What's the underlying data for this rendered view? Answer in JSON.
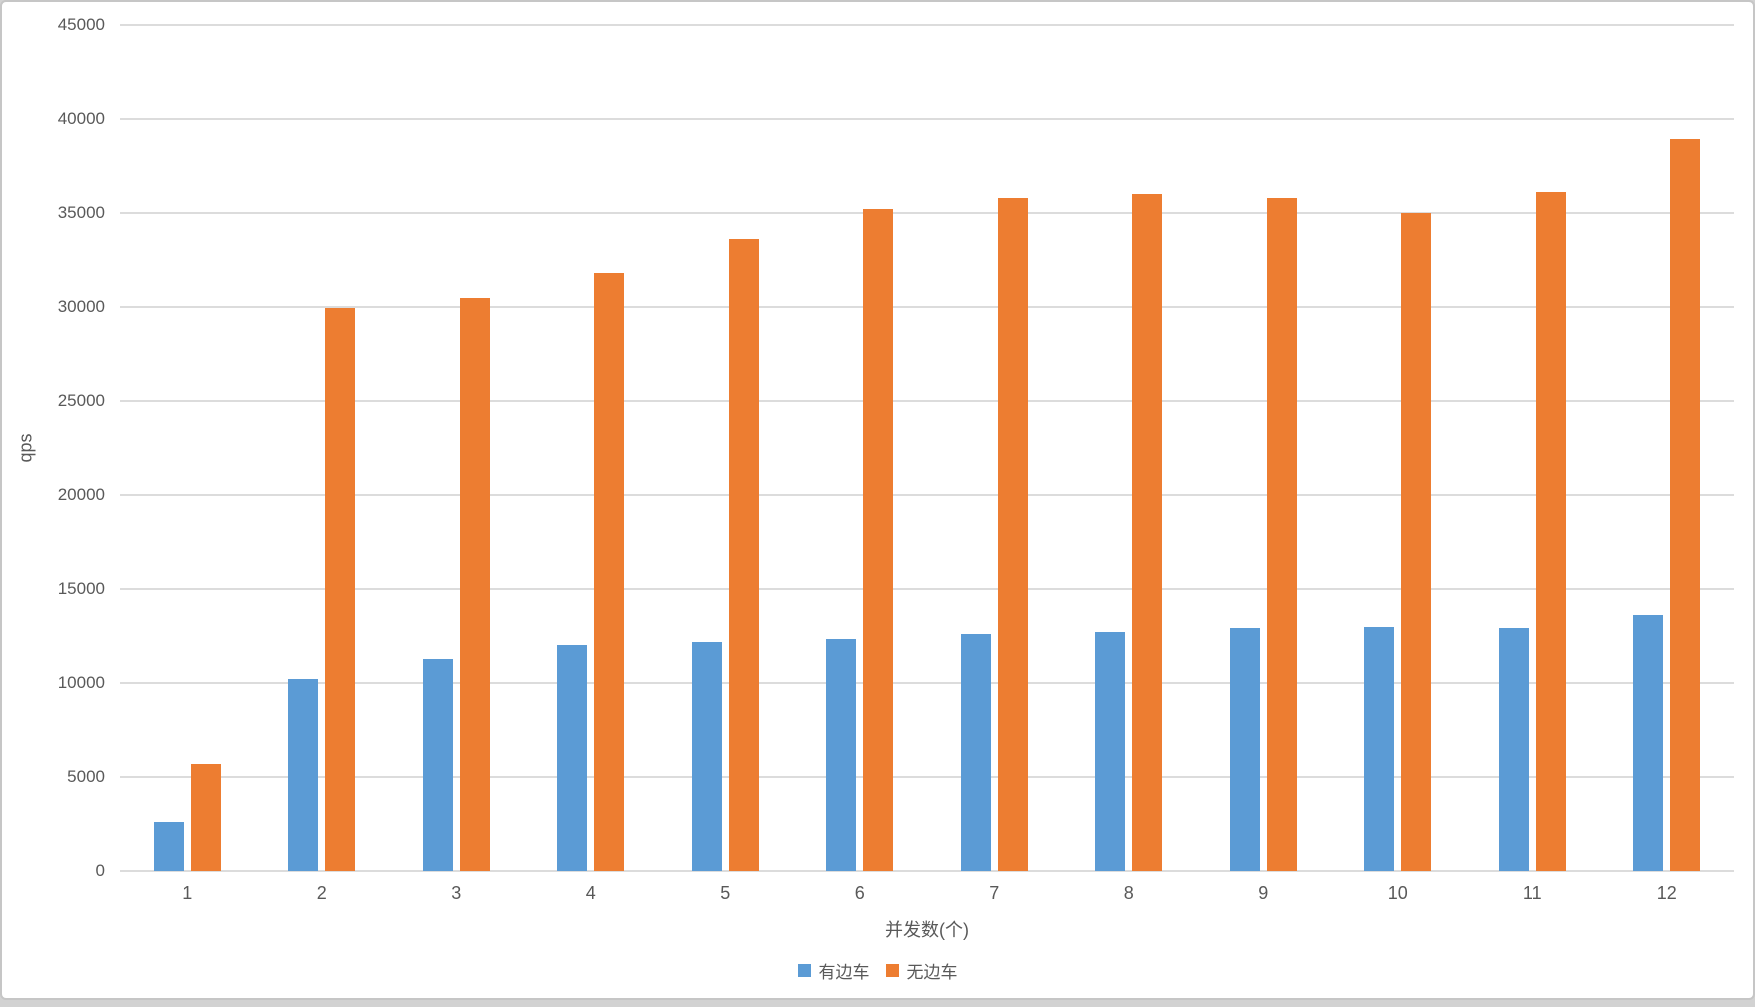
{
  "chart_data": {
    "type": "bar",
    "title": "",
    "xlabel": "并发数(个)",
    "ylabel": "qps",
    "categories": [
      "1",
      "2",
      "3",
      "4",
      "5",
      "6",
      "7",
      "8",
      "9",
      "10",
      "11",
      "12"
    ],
    "series": [
      {
        "name": "有边车",
        "color": "#5b9bd5",
        "values": [
          2600,
          10200,
          11300,
          12000,
          12200,
          12350,
          12600,
          12700,
          12900,
          13000,
          12950,
          13600
        ]
      },
      {
        "name": "无边车",
        "color": "#ed7d31",
        "values": [
          5700,
          29950,
          30500,
          31800,
          33600,
          35200,
          35800,
          36000,
          35800,
          35000,
          36100,
          38950
        ]
      }
    ],
    "ylim": [
      0,
      45000
    ],
    "ytick_step": 5000,
    "yticks": [
      0,
      5000,
      10000,
      15000,
      20000,
      25000,
      30000,
      35000,
      40000,
      45000
    ],
    "grid": true,
    "legend_position": "bottom-center"
  },
  "style_colors": {
    "grid": "#dcdcdc",
    "text": "#595959",
    "card_background": "#ffffff",
    "card_border": "#c6c6c6",
    "page_background": "#d2d2d2"
  }
}
